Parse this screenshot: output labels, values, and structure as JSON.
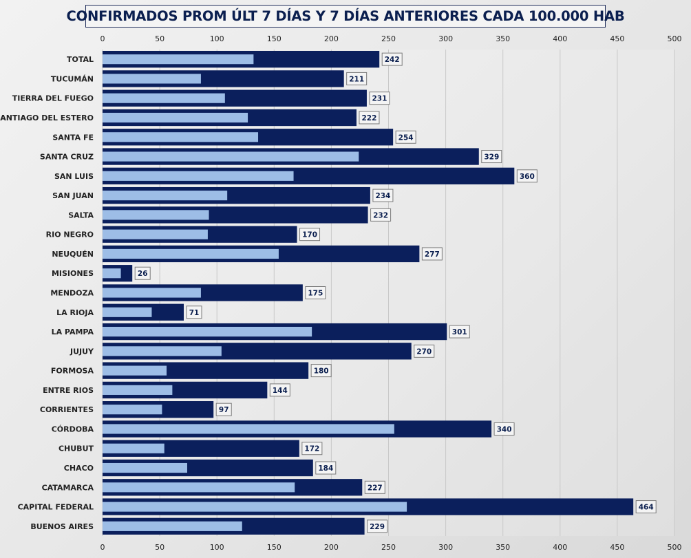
{
  "colors": {
    "current_series": "#0b1f5c",
    "previous_series": "#9dbde6",
    "grid": "#c8c8c8",
    "label_box_border": "#7a7a7a"
  },
  "chart_data": {
    "type": "bar",
    "orientation": "horizontal",
    "title": "CONFIRMADOS PROM ÚLT 7 DÍAS Y 7 DÍAS ANTERIORES CADA 100.000 HAB",
    "xlim": [
      0,
      500
    ],
    "x_ticks": [
      0,
      50,
      100,
      150,
      200,
      250,
      300,
      350,
      400,
      450,
      500
    ],
    "x_axis_position": "top-and-bottom",
    "grid": true,
    "legend": "none",
    "categories": [
      "TOTAL",
      "TUCUMÁN",
      "TIERRA  DEL FUEGO",
      "SANTIAGO  DEL ESTERO",
      "SANTA FE",
      "SANTA CRUZ",
      "SAN LUIS",
      "SAN JUAN",
      "SALTA",
      "RIO NEGRO",
      "NEUQUÉN",
      "MISIONES",
      "MENDOZA",
      "LA RIOJA",
      "LA PAMPA",
      "JUJUY",
      "FORMOSA",
      "ENTRE RIOS",
      "CORRIENTES",
      "CÓRDOBA",
      "CHUBUT",
      "CHACO",
      "CATAMARCA",
      "CAPITAL FEDERAL",
      "BUENOS  AIRES"
    ],
    "series": [
      {
        "values": [
          242,
          211,
          231,
          222,
          254,
          329,
          360,
          234,
          232,
          170,
          277,
          26,
          175,
          71,
          301,
          270,
          180,
          144,
          97,
          340,
          172,
          184,
          227,
          464,
          229
        ],
        "data_labels": true
      },
      {
        "values": [
          132,
          86,
          107,
          127,
          136,
          224,
          167,
          109,
          93,
          92,
          154,
          16,
          86,
          43,
          183,
          104,
          56,
          61,
          52,
          255,
          54,
          74,
          168,
          266,
          122
        ],
        "data_labels": false
      }
    ]
  }
}
